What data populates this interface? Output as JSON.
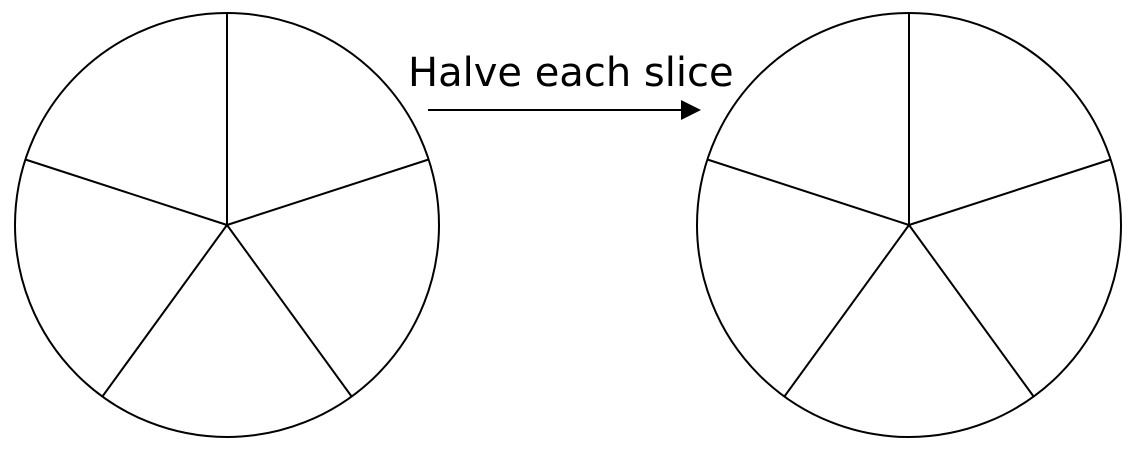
{
  "arrow": {
    "label": "Halve each slice"
  },
  "pies": [
    {
      "name": "pie-before",
      "slices": 5
    },
    {
      "name": "pie-after",
      "slices": 5
    }
  ],
  "colors": {
    "stroke": "#000000",
    "background": "#ffffff"
  }
}
